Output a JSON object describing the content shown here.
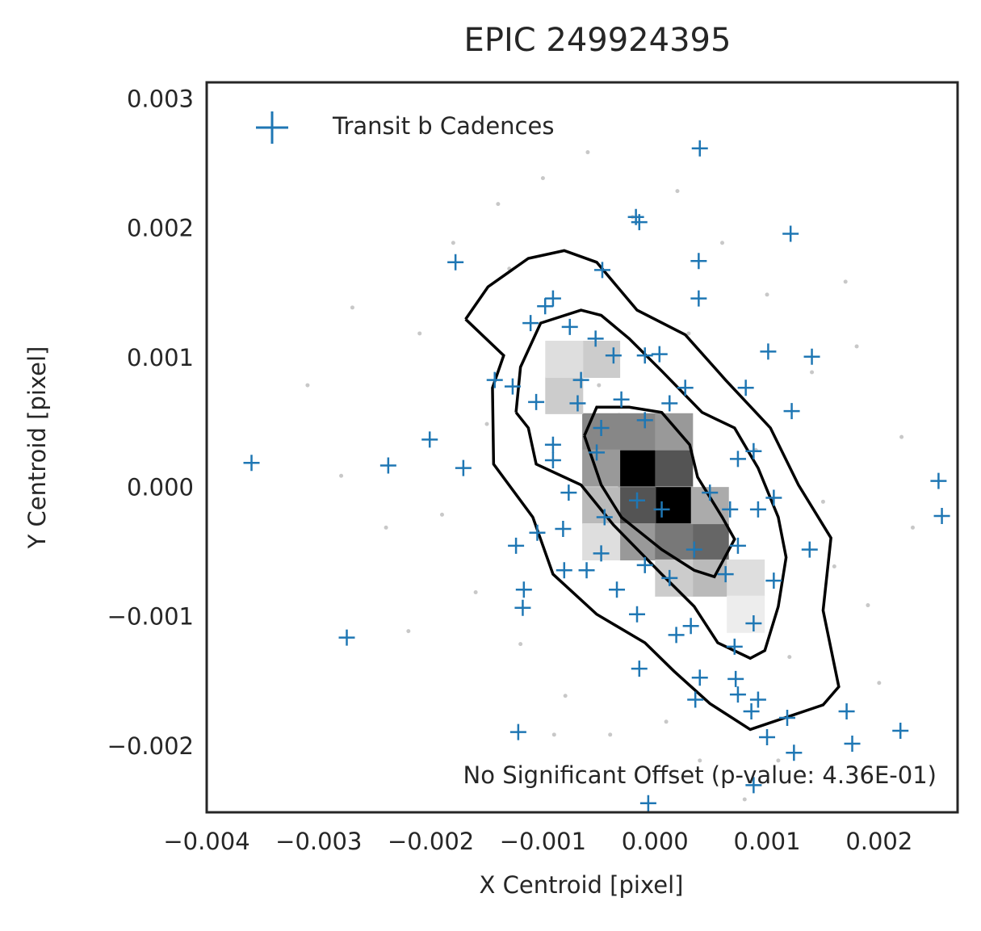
{
  "chart_data": {
    "type": "scatter",
    "title": "EPIC 249924395",
    "xlabel": "X Centroid [pixel]",
    "ylabel": "Y Centroid [pixel]",
    "annotation": "No Significant Offset (p-value: 4.36E-01)",
    "legend": "upper left",
    "xlim": [
      -0.004,
      0.0027
    ],
    "ylim": [
      -0.0025,
      0.00314
    ],
    "xticks": [
      {
        "value": -0.004,
        "label": "−0.004"
      },
      {
        "value": -0.003,
        "label": "−0.003"
      },
      {
        "value": -0.002,
        "label": "−0.002"
      },
      {
        "value": -0.001,
        "label": "−0.001"
      },
      {
        "value": 0,
        "label": "0.000"
      },
      0.001,
      0.002
    ],
    "yticks": [
      {
        "value": -0.002,
        "label": "−0.002"
      },
      {
        "value": -0.001,
        "label": "−0.001"
      },
      {
        "value": 0,
        "label": "0.000"
      },
      0.001,
      0.002,
      0.003
    ],
    "density": {
      "x": [
        -0.00016,
        0.00017,
        -0.00016,
        0.00017,
        -0.00048,
        -0.00016,
        0.00017,
        0.00049,
        -0.00016,
        0.00017,
        -0.00048,
        0.00049,
        -0.00048,
        -0.00081,
        -0.00048,
        -0.00081,
        0.00049,
        0.00081,
        0.00017,
        -0.00048,
        0.00081
      ],
      "y": [
        0.00016,
        -0.00013,
        -0.00013,
        0.00016,
        0.00044,
        0.00044,
        0.00044,
        -0.00041,
        -0.00041,
        -0.00041,
        0.00016,
        -0.00013,
        -0.00013,
        0.00072,
        0.001,
        0.001,
        -0.00069,
        -0.00069,
        -0.00069,
        -0.00041,
        -0.00097
      ],
      "values": [
        1,
        1,
        0.67,
        0.67,
        0.47,
        0.47,
        0.4,
        0.6,
        0.4,
        0.53,
        0.4,
        0.33,
        0.27,
        0.2,
        0.2,
        0.13,
        0.27,
        0.13,
        0.2,
        0.13,
        0.07
      ]
    },
    "points": {
      "color": "#b0b0b0",
      "x": [
        -0.0031,
        -0.0027,
        -0.0024,
        -0.0021,
        -0.0018,
        -0.0016,
        -0.0014,
        -0.0012,
        -0.001,
        -0.0008,
        -0.0006,
        -0.0004,
        -0.0002,
        0,
        0.0002,
        0.0004,
        0.0006,
        0.0008,
        0.001,
        0.0012,
        0.0014,
        0.0016,
        0.0018,
        0.002,
        0.0022,
        -0.0019,
        -0.0013,
        -0.0005,
        0.0003,
        0.0009,
        0.0015,
        0.0019,
        -0.0028,
        -0.0022,
        -0.0009,
        0.0001,
        0.0011,
        0.0017,
        0.0023,
        -0.0015
      ],
      "y": [
        0.0008,
        0.0014,
        -0.0003,
        0.0012,
        0.0019,
        -0.0008,
        0.0022,
        -0.0012,
        0.0024,
        -0.0016,
        0.0026,
        -0.0019,
        0.0021,
        -0.0022,
        0.0023,
        -0.0021,
        0.0019,
        -0.0024,
        0.0015,
        -0.0013,
        0.0009,
        -0.0006,
        0.0011,
        -0.0015,
        0.0004,
        -0.0002,
        0.0017,
        0.0008,
        0.0012,
        0.0003,
        -0.0001,
        -0.0009,
        0.0001,
        -0.0011,
        -0.0019,
        -0.0018,
        -0.0021,
        0.0016,
        -0.0003,
        0.0005
      ]
    },
    "contours": [
      {
        "x": [
          -0.00169,
          -0.00149,
          -0.00113,
          -0.00081,
          -0.00052,
          -0.00016,
          0.00027,
          0.00063,
          0.00103,
          0.00128,
          0.00157,
          0.0015,
          0.00164,
          0.0015,
          0.00085,
          0.00049,
          0.00017,
          -9e-05,
          -0.00052,
          -0.00091,
          -0.00109,
          -0.00144,
          -0.00145,
          -0.00135,
          -0.00169
        ],
        "y": [
          0.00131,
          0.00156,
          0.00178,
          0.00184,
          0.00175,
          0.00138,
          0.00119,
          0.00084,
          0.00047,
          3e-05,
          -0.00038,
          -0.00094,
          -0.00153,
          -0.00167,
          -0.00186,
          -0.00166,
          -0.00141,
          -0.00119,
          -0.00097,
          -0.00066,
          -0.00022,
          0.00019,
          0.00078,
          0.00103,
          0.00131
        ]
      },
      {
        "x": [
          -0.00124,
          -0.0012,
          -0.00102,
          -0.00066,
          -0.00048,
          -0.00023,
          6e-05,
          0.00042,
          0.00071,
          0.00092,
          0.0011,
          0.00117,
          0.0011,
          0.00098,
          0.00085,
          0.00056,
          0.00035,
          6e-05,
          -0.00037,
          -0.00066,
          -0.00081,
          -0.00106,
          -0.00113,
          -0.00124
        ],
        "y": [
          0.00059,
          0.00094,
          0.00128,
          0.00138,
          0.00134,
          0.00116,
          0.00091,
          0.00059,
          0.00047,
          0.00016,
          -0.00022,
          -0.00053,
          -0.00091,
          -0.00125,
          -0.00131,
          -0.00119,
          -0.00091,
          -0.00066,
          -0.00028,
          3e-05,
          9e-05,
          0.00019,
          0.00047,
          0.00059
        ]
      },
      {
        "x": [
          -0.00063,
          -0.00052,
          -0.00023,
          6e-05,
          0.00031,
          0.00038,
          0.0006,
          0.00071,
          0.00053,
          0.00035,
          6e-05,
          -0.0003,
          -0.00048,
          -0.00063
        ],
        "y": [
          0.00041,
          0.00063,
          0.00063,
          0.00059,
          0.00034,
          9e-05,
          -0.00022,
          -0.00039,
          -0.00068,
          -0.00063,
          -0.00047,
          -0.00022,
          3e-05,
          0.00041
        ]
      }
    ],
    "series": [
      {
        "name": "Transit b Cadences",
        "color": "#1f77b4",
        "x": [
          -0.0036,
          -0.00275,
          -0.00238,
          -0.00201,
          -0.00171,
          -0.00178,
          -0.00122,
          0.0004,
          -0.00017,
          -0.00014,
          0.00121,
          0.00039,
          0.00039,
          -0.00047,
          -0.00091,
          -0.00098,
          -0.00111,
          -0.00076,
          -0.00143,
          -0.00127,
          -0.00106,
          -0.00053,
          -0.00037,
          -9e-05,
          4e-05,
          0.00101,
          0.0014,
          0.00081,
          0.00122,
          0.00027,
          -0.00066,
          -0.00069,
          -0.00048,
          -0.0003,
          -0.00091,
          -0.00091,
          -0.00052,
          -9e-05,
          0.00013,
          0.00088,
          0.00074,
          0.00049,
          0.00067,
          0.00092,
          0.00106,
          -0.00077,
          -0.00045,
          -0.00016,
          6e-05,
          -0.00124,
          -0.00105,
          -0.00082,
          -0.00081,
          -0.00061,
          -0.00048,
          -0.00034,
          -9e-05,
          0.00013,
          0.00035,
          0.00063,
          0.00074,
          0.00106,
          0.00138,
          -0.00117,
          -0.00118,
          -0.00016,
          0.00019,
          0.00032,
          0.00071,
          0.00088,
          -0.00014,
          0.0004,
          0.00036,
          0.00072,
          0.00074,
          0.00092,
          0.00086,
          0.00118,
          0.001,
          0.00124,
          0.00171,
          0.00176,
          0.00219,
          0.00088,
          -6e-05,
          0.00253,
          0.00256
        ],
        "y": [
          0.0002,
          -0.00115,
          0.00018,
          0.00038,
          0.00016,
          0.00175,
          -0.00188,
          0.00263,
          0.0021,
          0.00206,
          0.00197,
          0.00176,
          0.00147,
          0.00169,
          0.00147,
          0.00141,
          0.00128,
          0.00125,
          0.00084,
          0.00079,
          0.00067,
          0.00116,
          0.00103,
          0.00103,
          0.00104,
          0.00106,
          0.00102,
          0.00078,
          0.0006,
          0.00078,
          0.00084,
          0.00066,
          0.00047,
          0.00069,
          0.00034,
          0.00022,
          0.00028,
          0.00053,
          0.00066,
          0.00029,
          0.00023,
          -3e-05,
          -0.00016,
          -0.00016,
          -7e-05,
          -3e-05,
          -0.00022,
          -9e-05,
          -0.00016,
          -0.00044,
          -0.00034,
          -0.00031,
          -0.00063,
          -0.00063,
          -0.0005,
          -0.00078,
          -0.00059,
          -0.00069,
          -0.00047,
          -0.00066,
          -0.00044,
          -0.00071,
          -0.00047,
          -0.00078,
          -0.00092,
          -0.00097,
          -0.00113,
          -0.00106,
          -0.00122,
          -0.00104,
          -0.00139,
          -0.00146,
          -0.00163,
          -0.00147,
          -0.00159,
          -0.00163,
          -0.00172,
          -0.00177,
          -0.00192,
          -0.00204,
          -0.00172,
          -0.00197,
          -0.00187,
          -0.00229,
          -0.00243,
          6e-05,
          -0.00021
        ]
      }
    ]
  }
}
